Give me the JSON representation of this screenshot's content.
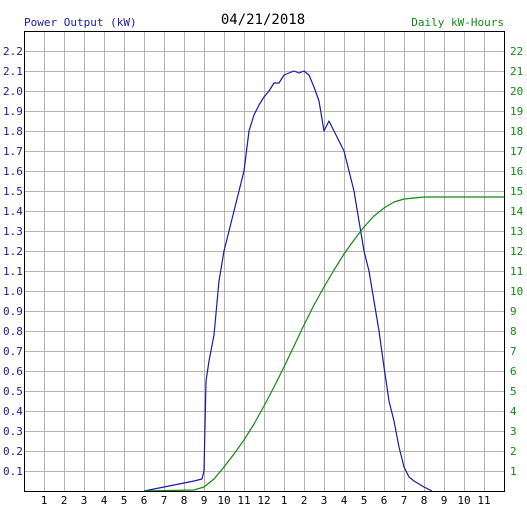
{
  "header": {
    "left_label": "Power Output (kW)",
    "date": "04/21/2018",
    "right_label": "Daily kW-Hours"
  },
  "colors": {
    "power": "#1a1aa8",
    "energy": "#138a13",
    "grid": "#b4b4b4",
    "axis": "#000000"
  },
  "chart_data": {
    "type": "line",
    "grid": true,
    "x_ticks": [
      "1",
      "2",
      "3",
      "4",
      "5",
      "6",
      "7",
      "8",
      "9",
      "10",
      "11",
      "12",
      "1",
      "2",
      "3",
      "4",
      "5",
      "6",
      "7",
      "8",
      "9",
      "10",
      "11"
    ],
    "x_range_hours": [
      0,
      24
    ],
    "y_left": {
      "label": "Power Output (kW)",
      "range": [
        0,
        2.3
      ],
      "ticks": [
        "0.1",
        "0.2",
        "0.3",
        "0.4",
        "0.5",
        "0.6",
        "0.7",
        "0.8",
        "0.9",
        "1.0",
        "1.1",
        "1.2",
        "1.3",
        "1.4",
        "1.5",
        "1.6",
        "1.7",
        "1.8",
        "1.9",
        "2.0",
        "2.1",
        "2.2"
      ]
    },
    "y_right": {
      "label": "Daily kW-Hours",
      "range": [
        0,
        23
      ],
      "ticks": [
        "1",
        "2",
        "3",
        "4",
        "5",
        "6",
        "7",
        "8",
        "9",
        "10",
        "11",
        "12",
        "13",
        "14",
        "15",
        "16",
        "17",
        "18",
        "19",
        "20",
        "21",
        "22"
      ]
    },
    "series": [
      {
        "name": "Power Output (kW)",
        "axis": "left",
        "points": [
          [
            6.0,
            0
          ],
          [
            6.5,
            0.01
          ],
          [
            7.0,
            0.02
          ],
          [
            7.5,
            0.03
          ],
          [
            8.0,
            0.04
          ],
          [
            8.5,
            0.05
          ],
          [
            8.9,
            0.06
          ],
          [
            9.0,
            0.1
          ],
          [
            9.1,
            0.55
          ],
          [
            9.25,
            0.65
          ],
          [
            9.5,
            0.78
          ],
          [
            9.75,
            1.05
          ],
          [
            10.0,
            1.2
          ],
          [
            10.25,
            1.3
          ],
          [
            10.5,
            1.4
          ],
          [
            10.75,
            1.5
          ],
          [
            11.0,
            1.6
          ],
          [
            11.25,
            1.8
          ],
          [
            11.5,
            1.88
          ],
          [
            11.75,
            1.93
          ],
          [
            12.0,
            1.97
          ],
          [
            12.25,
            2.0
          ],
          [
            12.5,
            2.04
          ],
          [
            12.75,
            2.04
          ],
          [
            13.0,
            2.08
          ],
          [
            13.25,
            2.09
          ],
          [
            13.5,
            2.1
          ],
          [
            13.75,
            2.09
          ],
          [
            14.0,
            2.1
          ],
          [
            14.25,
            2.08
          ],
          [
            14.5,
            2.02
          ],
          [
            14.75,
            1.95
          ],
          [
            15.0,
            1.8
          ],
          [
            15.25,
            1.85
          ],
          [
            15.5,
            1.8
          ],
          [
            15.75,
            1.75
          ],
          [
            16.0,
            1.7
          ],
          [
            16.25,
            1.6
          ],
          [
            16.5,
            1.5
          ],
          [
            16.75,
            1.35
          ],
          [
            17.0,
            1.2
          ],
          [
            17.25,
            1.1
          ],
          [
            17.5,
            0.95
          ],
          [
            17.75,
            0.8
          ],
          [
            18.0,
            0.62
          ],
          [
            18.25,
            0.45
          ],
          [
            18.5,
            0.35
          ],
          [
            18.75,
            0.22
          ],
          [
            19.0,
            0.12
          ],
          [
            19.25,
            0.07
          ],
          [
            19.5,
            0.05
          ],
          [
            20.0,
            0.02
          ],
          [
            20.4,
            0.0
          ]
        ]
      },
      {
        "name": "Daily kW-Hours",
        "axis": "right",
        "points": [
          [
            6.0,
            0
          ],
          [
            8.5,
            0.05
          ],
          [
            9.0,
            0.2
          ],
          [
            9.5,
            0.6
          ],
          [
            10.0,
            1.2
          ],
          [
            10.5,
            1.85
          ],
          [
            11.0,
            2.55
          ],
          [
            11.5,
            3.35
          ],
          [
            12.0,
            4.25
          ],
          [
            12.5,
            5.2
          ],
          [
            13.0,
            6.2
          ],
          [
            13.5,
            7.25
          ],
          [
            14.0,
            8.3
          ],
          [
            14.5,
            9.3
          ],
          [
            15.0,
            10.2
          ],
          [
            15.5,
            11.05
          ],
          [
            16.0,
            11.85
          ],
          [
            16.5,
            12.55
          ],
          [
            17.0,
            13.2
          ],
          [
            17.5,
            13.75
          ],
          [
            18.0,
            14.15
          ],
          [
            18.5,
            14.45
          ],
          [
            19.0,
            14.6
          ],
          [
            19.5,
            14.65
          ],
          [
            20.0,
            14.7
          ],
          [
            21.0,
            14.7
          ],
          [
            24.0,
            14.7
          ]
        ]
      }
    ]
  }
}
